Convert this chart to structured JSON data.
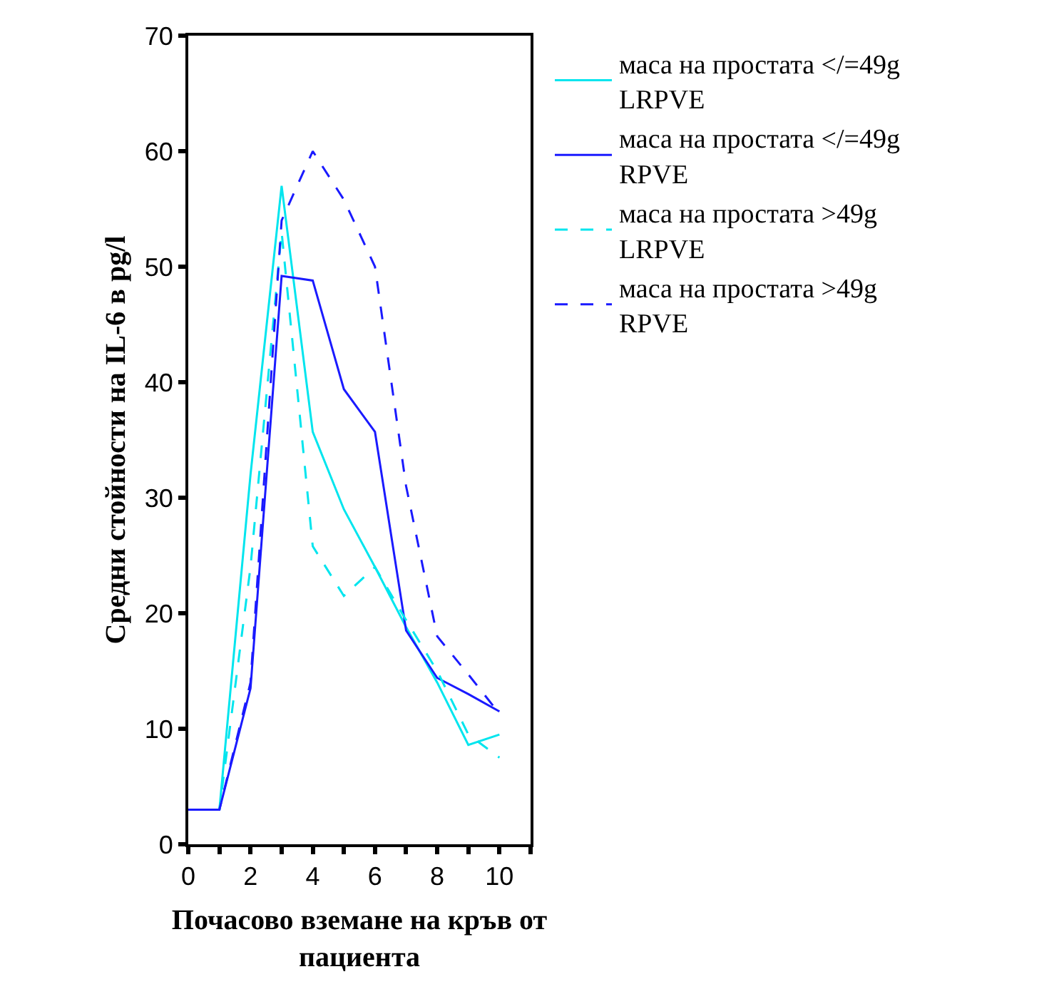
{
  "chart_data": {
    "type": "line",
    "xlabel": "Почасово вземане на кръв от пациента",
    "ylabel": "Средни стойности на IL-6 в pg/l",
    "x": [
      0,
      1,
      2,
      3,
      4,
      5,
      6,
      7,
      8,
      9,
      10
    ],
    "xlim": [
      0,
      11
    ],
    "xticks": [
      0,
      {
        "value": 1,
        "label": null
      },
      2,
      {
        "value": 3,
        "label": null
      },
      4,
      {
        "value": 5,
        "label": null
      },
      6,
      {
        "value": 7,
        "label": null
      },
      8,
      {
        "value": 9,
        "label": null
      },
      10,
      {
        "value": 11,
        "label": null
      }
    ],
    "ylim": [
      0,
      70
    ],
    "yticks": [
      0,
      10,
      20,
      30,
      40,
      50,
      60,
      70
    ],
    "marker": "none",
    "legend": "right",
    "series": [
      {
        "name": "маса на простата </=49g\nLRPVE",
        "color": "#00e5ee",
        "line_style": "solid",
        "values": [
          3,
          3,
          32,
          57,
          35.7,
          29,
          24,
          18.8,
          14,
          8.6,
          9.5
        ]
      },
      {
        "name": "маса на простата </=49g\nRPVE",
        "color": "#1a1aff",
        "line_style": "solid",
        "values": [
          3,
          3,
          13.5,
          49.2,
          48.8,
          39.4,
          35.7,
          18.5,
          14.4,
          13,
          11.5
        ]
      },
      {
        "name": "маса на простата >49g\nLRPVE",
        "color": "#00e5ee",
        "line_style": "dashed",
        "values": [
          3,
          3,
          24,
          53,
          25.8,
          21.5,
          24,
          19.4,
          15,
          9.5,
          7.5
        ]
      },
      {
        "name": "маса на простата >49g\nRPVE",
        "color": "#1a1aff",
        "line_style": "dashed",
        "values": [
          3,
          3,
          14,
          54,
          60,
          55.8,
          50,
          31,
          18,
          14.7,
          11.3
        ]
      }
    ]
  }
}
